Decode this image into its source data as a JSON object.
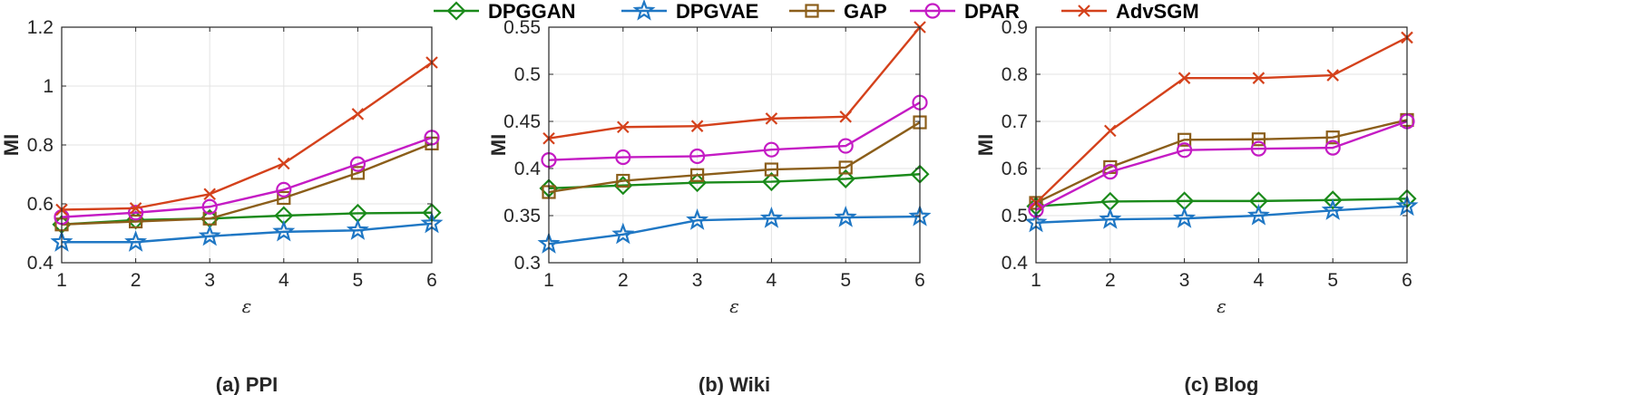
{
  "legend": [
    "DPGGAN",
    "DPGVAE",
    "GAP",
    "DPAR",
    "AdvSGM"
  ],
  "series_style": {
    "DPGGAN": {
      "color": "#1a8a1a",
      "marker": "diamond-icon"
    },
    "DPGVAE": {
      "color": "#1f77c4",
      "marker": "star-icon"
    },
    "GAP": {
      "color": "#8b5e1a",
      "marker": "square-icon"
    },
    "DPAR": {
      "color": "#c41bc4",
      "marker": "circle-icon"
    },
    "AdvSGM": {
      "color": "#d4411b",
      "marker": "cross-icon"
    }
  },
  "chart_data": [
    {
      "type": "line",
      "caption": "(a) PPI",
      "xlabel": "ε",
      "ylabel": "MI",
      "x": [
        1,
        2,
        3,
        4,
        5,
        6
      ],
      "xticks": [
        "1",
        "2",
        "3",
        "4",
        "5",
        "6"
      ],
      "ylim": [
        0.4,
        1.2
      ],
      "yticks": [
        0.4,
        0.6,
        0.8,
        1.0,
        1.2
      ],
      "ytick_labels": [
        "0.4",
        "0.6",
        "0.8",
        "1",
        "1.2"
      ],
      "grid": true,
      "series": [
        {
          "name": "DPGGAN",
          "values": [
            0.53,
            0.545,
            0.55,
            0.56,
            0.568,
            0.57
          ]
        },
        {
          "name": "DPGVAE",
          "values": [
            0.47,
            0.47,
            0.49,
            0.505,
            0.51,
            0.533
          ]
        },
        {
          "name": "GAP",
          "values": [
            0.53,
            0.54,
            0.55,
            0.62,
            0.705,
            0.805
          ]
        },
        {
          "name": "DPAR",
          "values": [
            0.555,
            0.57,
            0.59,
            0.648,
            0.735,
            0.825
          ]
        },
        {
          "name": "AdvSGM",
          "values": [
            0.58,
            0.585,
            0.633,
            0.737,
            0.905,
            1.08
          ]
        }
      ]
    },
    {
      "type": "line",
      "caption": "(b) Wiki",
      "xlabel": "ε",
      "ylabel": "MI",
      "x": [
        1,
        2,
        3,
        4,
        5,
        6
      ],
      "xticks": [
        "1",
        "2",
        "3",
        "4",
        "5",
        "6"
      ],
      "ylim": [
        0.3,
        0.55
      ],
      "yticks": [
        0.3,
        0.35,
        0.4,
        0.45,
        0.5,
        0.55
      ],
      "ytick_labels": [
        "0.3",
        "0.35",
        "0.4",
        "0.45",
        "0.5",
        "0.55"
      ],
      "grid": true,
      "series": [
        {
          "name": "DPGGAN",
          "values": [
            0.379,
            0.382,
            0.385,
            0.386,
            0.389,
            0.394
          ]
        },
        {
          "name": "DPGVAE",
          "values": [
            0.32,
            0.33,
            0.345,
            0.347,
            0.348,
            0.349
          ]
        },
        {
          "name": "GAP",
          "values": [
            0.375,
            0.387,
            0.393,
            0.399,
            0.401,
            0.449
          ]
        },
        {
          "name": "DPAR",
          "values": [
            0.409,
            0.412,
            0.413,
            0.42,
            0.424,
            0.47
          ]
        },
        {
          "name": "AdvSGM",
          "values": [
            0.432,
            0.444,
            0.445,
            0.453,
            0.455,
            0.55
          ]
        }
      ]
    },
    {
      "type": "line",
      "caption": "(c) Blog",
      "xlabel": "ε",
      "ylabel": "MI",
      "x": [
        1,
        2,
        3,
        4,
        5,
        6
      ],
      "xticks": [
        "1",
        "2",
        "3",
        "4",
        "5",
        "6"
      ],
      "ylim": [
        0.4,
        0.9
      ],
      "yticks": [
        0.4,
        0.5,
        0.6,
        0.7,
        0.8,
        0.9
      ],
      "ytick_labels": [
        "0.4",
        "0.5",
        "0.6",
        "0.7",
        "0.8",
        "0.9"
      ],
      "grid": true,
      "series": [
        {
          "name": "DPGGAN",
          "values": [
            0.52,
            0.53,
            0.531,
            0.531,
            0.533,
            0.536
          ]
        },
        {
          "name": "DPGVAE",
          "values": [
            0.485,
            0.492,
            0.494,
            0.5,
            0.511,
            0.52
          ]
        },
        {
          "name": "GAP",
          "values": [
            0.527,
            0.603,
            0.661,
            0.662,
            0.666,
            0.703
          ]
        },
        {
          "name": "DPAR",
          "values": [
            0.512,
            0.593,
            0.639,
            0.642,
            0.644,
            0.7
          ]
        },
        {
          "name": "AdvSGM",
          "values": [
            0.527,
            0.68,
            0.792,
            0.792,
            0.798,
            0.878
          ]
        }
      ]
    }
  ]
}
